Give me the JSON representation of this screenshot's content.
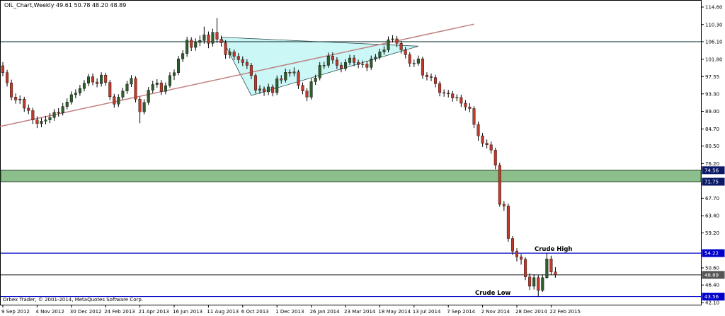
{
  "chart_data": {
    "type": "candlestick",
    "title": "OIL_Chart,Weekly  49.61 50.78 48.20 48.89",
    "footer": "Orbex Trader, © 2001-2014, MetaQuotes Software Corp.",
    "categories": [
      "9 Sep 2012",
      null,
      null,
      null,
      null,
      null,
      null,
      null,
      "4 Nov 2012",
      null,
      null,
      null,
      null,
      null,
      null,
      null,
      "30 Dec 2012",
      null,
      null,
      null,
      null,
      null,
      null,
      null,
      "24 Feb 2013",
      null,
      null,
      null,
      null,
      null,
      null,
      null,
      "21 Apr 2013",
      null,
      null,
      null,
      null,
      null,
      null,
      null,
      "16 Jun 2013",
      null,
      null,
      null,
      null,
      null,
      null,
      null,
      "11 Aug 2013",
      null,
      null,
      null,
      null,
      null,
      null,
      null,
      "6 Oct 2013",
      null,
      null,
      null,
      null,
      null,
      null,
      null,
      "1 Dec 2013",
      null,
      null,
      null,
      null,
      null,
      null,
      null,
      "26 Jan 2014",
      null,
      null,
      null,
      null,
      null,
      null,
      null,
      "23 Mar 2014",
      null,
      null,
      null,
      null,
      null,
      null,
      null,
      "18 May 2014",
      null,
      null,
      null,
      null,
      null,
      null,
      null,
      "13 Jul 2014",
      null,
      null,
      null,
      null,
      null,
      null,
      null,
      "7 Sep 2014",
      null,
      null,
      null,
      null,
      null,
      null,
      null,
      "2 Nov 2014",
      null,
      null,
      null,
      null,
      null,
      null,
      null,
      "28 Dec 2014",
      null,
      null,
      null,
      null,
      null,
      null,
      null,
      "22 Feb 2015",
      null
    ],
    "open": [
      100.2,
      98.5,
      96.0,
      92.5,
      91.8,
      92.0,
      89.8,
      89.2,
      86.9,
      86.0,
      86.6,
      86.9,
      87.5,
      88.8,
      88.6,
      90.2,
      91.3,
      93.1,
      93.5,
      94.6,
      95.9,
      97.5,
      96.2,
      95.8,
      97.9,
      96.1,
      92.6,
      90.8,
      92.5,
      94.0,
      95.7,
      97.1,
      92.0,
      88.9,
      91.2,
      94.2,
      95.6,
      96.0,
      93.9,
      95.3,
      97.8,
      98.5,
      101.9,
      103.2,
      106.5,
      104.7,
      105.9,
      106.4,
      107.8,
      105.7,
      108.4,
      106.7,
      105.8,
      102.9,
      103.6,
      102.5,
      101.7,
      101.0,
      100.3,
      97.8,
      94.2,
      94.5,
      93.8,
      95.0,
      93.6,
      97.0,
      96.7,
      98.6,
      98.4,
      98.7,
      95.4,
      94.0,
      92.5,
      96.3,
      97.2,
      100.3,
      100.3,
      102.6,
      101.6,
      100.3,
      99.5,
      101.0,
      102.1,
      101.0,
      100.5,
      100.6,
      99.8,
      101.9,
      102.3,
      103.6,
      104.1,
      106.6,
      106.8,
      105.7,
      104.1,
      102.9,
      100.8,
      100.8,
      101.9,
      97.9,
      97.5,
      97.3,
      95.8,
      93.6,
      93.5,
      93.3,
      92.3,
      92.4,
      91.0,
      90.1,
      89.7,
      85.8,
      83.0,
      81.2,
      80.8,
      79.5,
      75.8,
      66.2,
      65.8,
      57.8,
      54.7,
      53.3,
      52.7,
      48.4,
      46.1,
      48.2,
      45.1,
      48.2,
      52.8,
      49.61
    ],
    "high": [
      101.1,
      99.2,
      96.8,
      93.4,
      92.9,
      92.6,
      90.7,
      89.9,
      87.8,
      87.4,
      87.9,
      88.6,
      89.6,
      89.8,
      91.1,
      92.2,
      93.9,
      94.4,
      95.5,
      96.7,
      98.2,
      98.3,
      97.1,
      98.6,
      98.5,
      96.7,
      93.3,
      93.2,
      94.8,
      96.5,
      97.9,
      97.6,
      92.6,
      92.0,
      95.0,
      96.5,
      96.9,
      96.7,
      96.1,
      98.6,
      99.3,
      102.6,
      104.0,
      107.3,
      107.2,
      106.9,
      107.6,
      109.8,
      108.6,
      109.3,
      111.9,
      107.6,
      106.5,
      104.5,
      104.2,
      103.3,
      102.5,
      101.8,
      100.9,
      98.3,
      95.4,
      95.1,
      95.8,
      95.6,
      97.8,
      97.9,
      99.5,
      99.3,
      99.8,
      99.2,
      96.1,
      94.7,
      97.1,
      98.0,
      101.1,
      101.2,
      103.4,
      103.5,
      102.3,
      101.0,
      101.8,
      102.9,
      102.8,
      101.7,
      101.5,
      101.4,
      102.7,
      103.1,
      104.4,
      105.0,
      107.4,
      107.7,
      107.5,
      106.3,
      104.8,
      103.5,
      101.7,
      102.7,
      102.4,
      98.6,
      98.3,
      98.0,
      96.4,
      94.4,
      94.3,
      94.0,
      93.2,
      93.1,
      91.8,
      91.0,
      90.3,
      86.5,
      83.7,
      82.1,
      81.6,
      80.1,
      76.4,
      67.0,
      66.4,
      58.4,
      55.4,
      54.0,
      53.2,
      49.3,
      49.0,
      48.9,
      49.0,
      54.22,
      53.6,
      50.78
    ],
    "low": [
      97.6,
      95.1,
      91.7,
      90.9,
      90.8,
      88.9,
      88.3,
      85.9,
      84.9,
      85.1,
      85.8,
      86.1,
      86.7,
      87.7,
      88.0,
      89.5,
      90.7,
      92.2,
      92.8,
      93.9,
      95.2,
      95.4,
      94.9,
      95.1,
      95.3,
      91.8,
      89.9,
      90.1,
      91.9,
      93.3,
      95.0,
      91.2,
      86.1,
      88.3,
      90.6,
      93.5,
      94.8,
      93.0,
      93.2,
      94.8,
      96.7,
      97.9,
      101.1,
      102.4,
      103.8,
      103.9,
      105.0,
      105.6,
      104.5,
      104.9,
      105.8,
      104.9,
      101.9,
      102.0,
      101.6,
      100.8,
      100.1,
      99.4,
      96.9,
      93.4,
      93.3,
      92.8,
      93.0,
      92.7,
      93.0,
      95.8,
      96.1,
      97.5,
      97.6,
      94.5,
      93.2,
      91.5,
      91.9,
      95.5,
      96.6,
      99.4,
      99.7,
      100.7,
      99.4,
      98.6,
      98.9,
      100.4,
      100.1,
      99.6,
      99.7,
      98.9,
      99.2,
      101.2,
      101.7,
      102.9,
      103.5,
      105.9,
      104.8,
      103.2,
      102.0,
      99.9,
      99.9,
      100.2,
      97.0,
      96.6,
      96.4,
      94.9,
      92.7,
      92.6,
      92.4,
      91.4,
      91.5,
      90.1,
      89.2,
      88.8,
      84.9,
      81.8,
      80.3,
      79.9,
      78.6,
      74.8,
      65.6,
      64.6,
      57.0,
      53.8,
      52.2,
      51.4,
      47.6,
      45.2,
      45.3,
      43.56,
      44.7,
      47.9,
      48.9,
      48.2
    ],
    "close": [
      98.5,
      96.0,
      92.5,
      91.8,
      92.0,
      89.8,
      89.2,
      86.9,
      86.0,
      86.6,
      86.9,
      87.5,
      88.8,
      88.6,
      90.2,
      91.3,
      93.1,
      93.5,
      94.6,
      95.9,
      97.5,
      96.2,
      95.8,
      97.9,
      96.1,
      92.6,
      90.8,
      92.5,
      94.0,
      95.7,
      97.1,
      92.0,
      88.9,
      91.2,
      94.2,
      95.6,
      96.0,
      93.9,
      95.3,
      97.8,
      98.5,
      101.9,
      103.2,
      106.5,
      104.7,
      105.9,
      106.4,
      107.8,
      105.7,
      108.4,
      106.7,
      105.8,
      102.9,
      103.6,
      102.5,
      101.7,
      101.0,
      100.3,
      97.8,
      94.2,
      94.5,
      93.8,
      95.0,
      93.6,
      97.0,
      96.7,
      98.6,
      98.4,
      98.7,
      95.4,
      94.0,
      92.5,
      96.3,
      97.2,
      100.3,
      100.3,
      102.6,
      101.6,
      100.3,
      99.5,
      101.0,
      102.1,
      101.0,
      100.5,
      100.6,
      99.8,
      101.9,
      102.3,
      103.6,
      104.1,
      106.6,
      106.8,
      105.7,
      104.1,
      102.9,
      100.8,
      100.8,
      101.9,
      97.9,
      97.5,
      97.3,
      95.8,
      93.6,
      93.5,
      93.3,
      92.3,
      92.4,
      91.0,
      90.1,
      89.7,
      85.8,
      83.0,
      81.2,
      80.8,
      79.5,
      75.8,
      66.2,
      65.8,
      57.8,
      54.7,
      53.3,
      52.7,
      48.4,
      46.1,
      48.2,
      45.1,
      48.2,
      52.8,
      49.6,
      48.89
    ],
    "up_color": "#2e5e2e",
    "down_color": "#c0392b",
    "ylim": [
      41.75,
      115.81
    ],
    "yticks": [
      {
        "value": 114.6,
        "label": "114.60"
      },
      {
        "value": 110.3,
        "label": "110.30"
      },
      {
        "value": 106.1,
        "label": "106.10"
      },
      {
        "value": 101.8,
        "label": "101.80"
      },
      {
        "value": 97.55,
        "label": "97.55"
      },
      {
        "value": 93.3,
        "label": "93.30"
      },
      {
        "value": 89,
        "label": "89.00"
      },
      {
        "value": 84.7,
        "label": "84.70"
      },
      {
        "value": 80.5,
        "label": "80.50"
      },
      {
        "value": 76.2,
        "label": "76.20"
      },
      {
        "value": 67.7,
        "label": "67.70"
      },
      {
        "value": 63.4,
        "label": "63.40"
      },
      {
        "value": 59.2,
        "label": "59.20"
      },
      {
        "value": 50.6,
        "label": "50.60"
      },
      {
        "value": 46.4,
        "label": "46.40"
      },
      {
        "value": 42.1,
        "label": "42.10"
      }
    ],
    "zone": {
      "from": 74.56,
      "to": 71.75,
      "color": "#8dbf8d",
      "edge": "#1f3f1f"
    },
    "levels": [
      {
        "value": 106.1,
        "color": "#2f4f4f",
        "boxed": false
      },
      {
        "value": 54.22,
        "color": "#0000cc",
        "boxed": true
      },
      {
        "value": 48.89,
        "color": "#333333",
        "boxed": true
      },
      {
        "value": 43.56,
        "color": "#0000cc",
        "boxed": true
      }
    ],
    "trendline": {
      "from": [
        0,
        85.3
      ],
      "to": [
        110,
        110.4
      ],
      "color": "#c08080"
    },
    "triangle": {
      "points": [
        [
          51,
          107.2
        ],
        [
          58,
          92.9
        ],
        [
          97,
          105.0
        ]
      ],
      "fill": "#ccf7f7",
      "stroke": "#2f4f4f"
    },
    "annotations": [
      "Crude High",
      "Crude Low"
    ]
  }
}
